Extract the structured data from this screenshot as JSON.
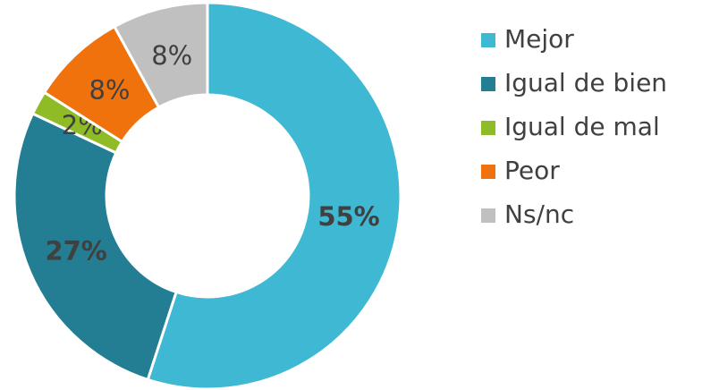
{
  "chart_data": {
    "type": "donut",
    "categories": [
      "Mejor",
      "Igual de bien",
      "Igual de mal",
      "Peor",
      "Ns/nc"
    ],
    "values": [
      55,
      27,
      2,
      8,
      8
    ],
    "value_labels": [
      "55%",
      "27%",
      "2%",
      "8%",
      "8%"
    ],
    "colors": [
      "#3fb8d4",
      "#237d93",
      "#8fbc26",
      "#f0720d",
      "#c0c0c0"
    ],
    "legend": "right"
  }
}
